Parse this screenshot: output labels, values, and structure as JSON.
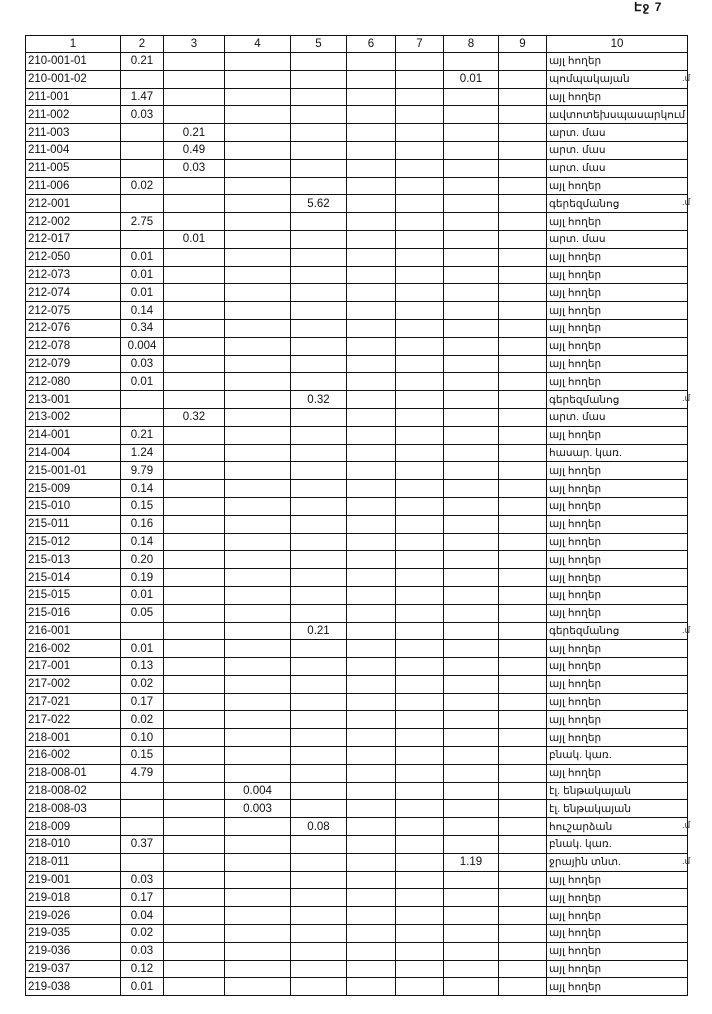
{
  "page_label": "Էջ 7",
  "table": {
    "headers": [
      "1",
      "2",
      "3",
      "4",
      "5",
      "6",
      "7",
      "8",
      "9",
      "10"
    ],
    "rows": [
      {
        "id": "210-001-01",
        "c2": "0.21",
        "c10": "այլ հողեր"
      },
      {
        "id": "210-001-02",
        "c8": "0.01",
        "c10": "պոմպակայան",
        "mark": ".մ"
      },
      {
        "id": "211-001",
        "c2": "1.47",
        "c10": "այլ հողեր"
      },
      {
        "id": "211-002",
        "c2": "0.03",
        "c10": "ավտոտեխսպասարկում"
      },
      {
        "id": "211-003",
        "c3": "0.21",
        "c10": "արտ. մաս"
      },
      {
        "id": "211-004",
        "c3": "0.49",
        "c10": "արտ. մաս"
      },
      {
        "id": "211-005",
        "c3": "0.03",
        "c10": "արտ. մաս"
      },
      {
        "id": "211-006",
        "c2": "0.02",
        "c10": "այլ հողեր"
      },
      {
        "id": "212-001",
        "c5": "5.62",
        "c10": "գերեզմանոց",
        "mark": ".մ"
      },
      {
        "id": "212-002",
        "c2": "2.75",
        "c10": "այլ հողեր"
      },
      {
        "id": "212-017",
        "c3": "0.01",
        "c10": "արտ. մաս"
      },
      {
        "id": "212-050",
        "c2": "0.01",
        "c10": "այլ հողեր"
      },
      {
        "id": "212-073",
        "c2": "0.01",
        "c10": "այլ հողեր"
      },
      {
        "id": "212-074",
        "c2": "0.01",
        "c10": "այլ հողեր"
      },
      {
        "id": "212-075",
        "c2": "0.14",
        "c10": "այլ հողեր"
      },
      {
        "id": "212-076",
        "c2": "0.34",
        "c10": "այլ հողեր"
      },
      {
        "id": "212-078",
        "c2": "0.004",
        "c10": "այլ հողեր"
      },
      {
        "id": "212-079",
        "c2": "0.03",
        "c10": "այլ հողեր"
      },
      {
        "id": "212-080",
        "c2": "0.01",
        "c10": "այլ հողեր"
      },
      {
        "id": "213-001",
        "c5": "0.32",
        "c10": "գերեզմանոց",
        "mark": ".մ"
      },
      {
        "id": "213-002",
        "c3": "0.32",
        "c10": "արտ. մաս"
      },
      {
        "id": "214-001",
        "c2": "0.21",
        "c10": "այլ հողեր"
      },
      {
        "id": "214-004",
        "c2": "1.24",
        "c10": "հասար. կառ."
      },
      {
        "id": "215-001-01",
        "c2": "9.79",
        "c10": "այլ հողեր"
      },
      {
        "id": "215-009",
        "c2": "0.14",
        "c10": "այլ հողեր"
      },
      {
        "id": "215-010",
        "c2": "0.15",
        "c10": "այլ հողեր"
      },
      {
        "id": "215-011",
        "c2": "0.16",
        "c10": "այլ հողեր"
      },
      {
        "id": "215-012",
        "c2": "0.14",
        "c10": "այլ հողեր"
      },
      {
        "id": "215-013",
        "c2": "0.20",
        "c10": "այլ հողեր"
      },
      {
        "id": "215-014",
        "c2": "0.19",
        "c10": "այլ հողեր"
      },
      {
        "id": "215-015",
        "c2": "0.01",
        "c10": "այլ հողեր"
      },
      {
        "id": "215-016",
        "c2": "0.05",
        "c10": "այլ հողեր"
      },
      {
        "id": "216-001",
        "c5": "0.21",
        "c10": "գերեզմանոց",
        "mark": ".մ"
      },
      {
        "id": "216-002",
        "c2": "0.01",
        "c10": "այլ հողեր"
      },
      {
        "id": "217-001",
        "c2": "0.13",
        "c10": "այլ հողեր"
      },
      {
        "id": "217-002",
        "c2": "0.02",
        "c10": "այլ հողեր"
      },
      {
        "id": "217-021",
        "c2": "0.17",
        "c10": "այլ հողեր"
      },
      {
        "id": "217-022",
        "c2": "0.02",
        "c10": "այլ հողեր"
      },
      {
        "id": "218-001",
        "c2": "0.10",
        "c10": "այլ հողեր"
      },
      {
        "id": "216-002",
        "c2": "0.15",
        "c10": "բնակ. կառ."
      },
      {
        "id": "218-008-01",
        "c2": "4.79",
        "c10": "այլ հողեր"
      },
      {
        "id": "218-008-02",
        "c4": "0.004",
        "c10": "էլ. ենթակայան"
      },
      {
        "id": "218-008-03",
        "c4": "0.003",
        "c10": "էլ. ենթակայան"
      },
      {
        "id": "218-009",
        "c5": "0.08",
        "c10": "հուշարձան",
        "mark": ".մ"
      },
      {
        "id": "218-010",
        "c2": "0.37",
        "c10": "բնակ. կառ."
      },
      {
        "id": "218-011",
        "c8": "1.19",
        "c10": "ջրային տնտ.",
        "mark": ".մ"
      },
      {
        "id": "219-001",
        "c2": "0.03",
        "c10": "այլ հողեր"
      },
      {
        "id": "219-018",
        "c2": "0.17",
        "c10": "այլ հողեր"
      },
      {
        "id": "219-026",
        "c2": "0.04",
        "c10": "այլ հողեր"
      },
      {
        "id": "219-035",
        "c2": "0.02",
        "c10": "այլ հողեր"
      },
      {
        "id": "219-036",
        "c2": "0.03",
        "c10": "այլ հողեր"
      },
      {
        "id": "219-037",
        "c2": "0.12",
        "c10": "այլ հողեր"
      },
      {
        "id": "219-038",
        "c2": "0.01",
        "c10": "այլ հողեր"
      }
    ]
  }
}
